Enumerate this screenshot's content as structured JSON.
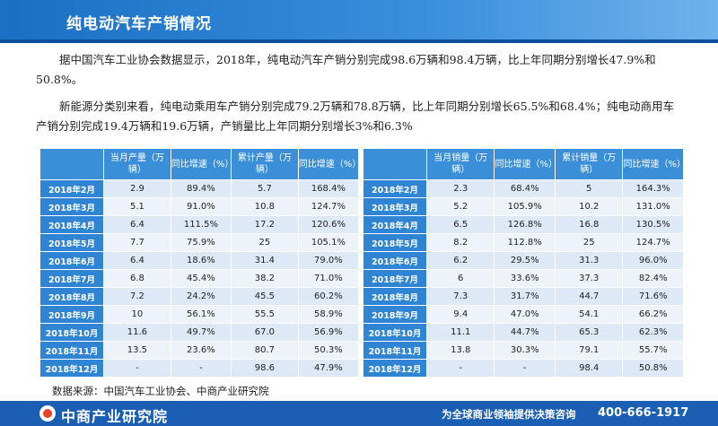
{
  "header": {
    "title": "纯电动汽车产销情况"
  },
  "paragraphs": [
    "据中国汽车工业协会数据显示，2018年，纯电动汽车产销分别完成98.6万辆和98.4万辆，比上年同期分别增长47.9%和50.8%。",
    "新能源分类别来看，纯电动乘用车产销分别完成79.2万辆和78.8万辆，比上年同期分别增长65.5%和68.4%；纯电动商用车产销分别完成19.4万辆和19.6万辆，产销量比上年同期分别增长3%和6.3%"
  ],
  "production_table": {
    "headers": [
      "当月产量（万辆）",
      "同比增速（%）",
      "累计产量（万辆）",
      "同比增速（%）"
    ],
    "rows": [
      [
        "2018年2月",
        "2.9",
        "89.4%",
        "5.7",
        "168.4%"
      ],
      [
        "2018年3月",
        "5.1",
        "91.0%",
        "10.8",
        "124.7%"
      ],
      [
        "2018年4月",
        "6.4",
        "111.5%",
        "17.2",
        "120.6%"
      ],
      [
        "2018年5月",
        "7.7",
        "75.9%",
        "25",
        "105.1%"
      ],
      [
        "2018年6月",
        "6.4",
        "18.6%",
        "31.4",
        "79.0%"
      ],
      [
        "2018年7月",
        "6.8",
        "45.4%",
        "38.2",
        "71.0%"
      ],
      [
        "2018年8月",
        "7.2",
        "24.2%",
        "45.5",
        "60.2%"
      ],
      [
        "2018年9月",
        "10",
        "56.1%",
        "55.5",
        "58.9%"
      ],
      [
        "2018年10月",
        "11.6",
        "49.7%",
        "67.0",
        "56.9%"
      ],
      [
        "2018年11月",
        "13.5",
        "23.6%",
        "80.7",
        "50.3%"
      ],
      [
        "2018年12月",
        "-",
        "-",
        "98.6",
        "47.9%"
      ]
    ]
  },
  "sales_table": {
    "headers": [
      "当月销量（万辆）",
      "同比增速（%）",
      "累计销量（万辆）",
      "同比增速（%）"
    ],
    "rows": [
      [
        "2018年2月",
        "2.3",
        "68.4%",
        "5",
        "164.3%"
      ],
      [
        "2018年3月",
        "5.2",
        "105.9%",
        "10.2",
        "131.0%"
      ],
      [
        "2018年4月",
        "6.5",
        "126.8%",
        "16.8",
        "130.5%"
      ],
      [
        "2018年5月",
        "8.2",
        "112.8%",
        "25",
        "124.7%"
      ],
      [
        "2018年6月",
        "6.2",
        "29.5%",
        "31.3",
        "96.0%"
      ],
      [
        "2018年7月",
        "6",
        "33.6%",
        "37.3",
        "82.4%"
      ],
      [
        "2018年8月",
        "7.3",
        "31.7%",
        "44.7",
        "71.6%"
      ],
      [
        "2018年9月",
        "9.4",
        "47.0%",
        "54.1",
        "66.2%"
      ],
      [
        "2018年10月",
        "11.1",
        "44.7%",
        "65.3",
        "62.3%"
      ],
      [
        "2018年11月",
        "13.8",
        "30.3%",
        "79.1",
        "55.7%"
      ],
      [
        "2018年12月",
        "-",
        "-",
        "98.4",
        "50.8%"
      ]
    ]
  },
  "source": "数据来源：中国汽车工业协会、中商产业研究院",
  "footer": {
    "logo_text": "中商产业研究院",
    "slogan": "为全球商业领袖提供决策咨询",
    "phone": "400-666-1917"
  },
  "colors": {
    "header_blue": "#1a6fc4",
    "table_head": "#3a8fd8",
    "row_head": "#2f85d3",
    "cell_light": "#dde9f6",
    "footer_blue": "#1a5fb4"
  }
}
